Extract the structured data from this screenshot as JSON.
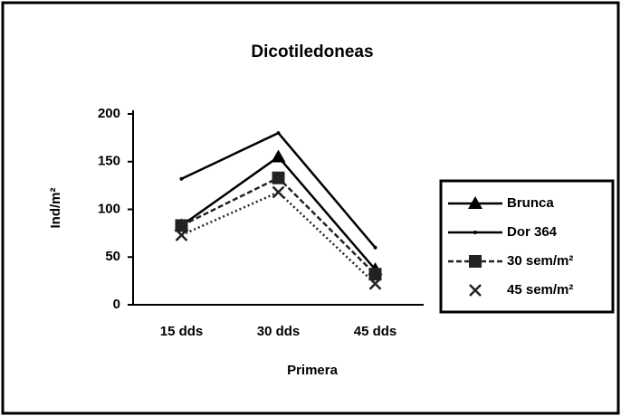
{
  "chart_data": {
    "type": "line",
    "title": "Dicotiledoneas",
    "x_label": "Primera",
    "y_label": "Ind/m²",
    "categories": [
      "15 dds",
      "30 dds",
      "45 dds"
    ],
    "series": [
      {
        "name": "Brunca",
        "color": "#000000",
        "marker": "triangle",
        "dash": "solid",
        "values": [
          83,
          155,
          37
        ]
      },
      {
        "name": "Dor 364",
        "color": "#000000",
        "marker": "none",
        "dash": "solid",
        "values": [
          132,
          180,
          60
        ]
      },
      {
        "name": "30 sem/m²",
        "color": "#222222",
        "marker": "square",
        "dash": "dashed",
        "values": [
          83,
          133,
          32
        ]
      },
      {
        "name": "45 sem/m²",
        "color": "#222222",
        "marker": "cross",
        "dash": "dotted",
        "values": [
          73,
          118,
          22
        ]
      }
    ],
    "ylim": [
      0,
      200
    ],
    "yticks": [
      0,
      50,
      100,
      150,
      200
    ],
    "grid": false,
    "legend": "right"
  }
}
